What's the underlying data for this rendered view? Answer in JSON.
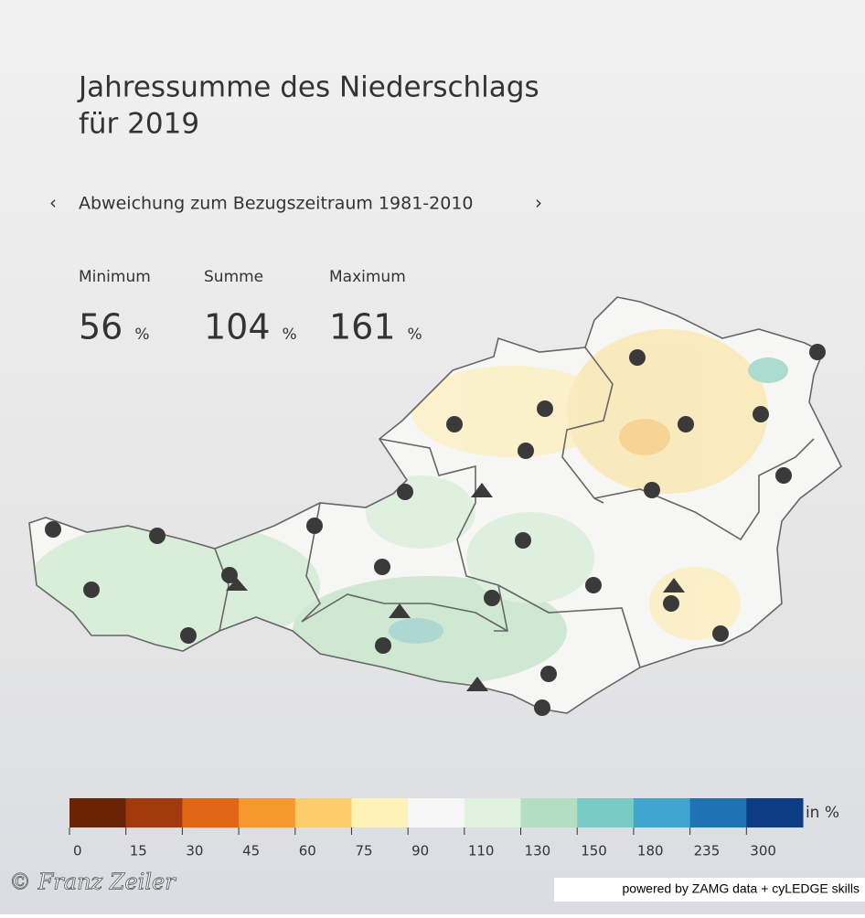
{
  "header": {
    "title_lines": [
      "Jahressumme des Niederschlags",
      "für 2019"
    ]
  },
  "nav": {
    "subtitle": "Abweichung zum Bezugszeitraum 1981-2010",
    "prev": "‹",
    "next": "›"
  },
  "stats": [
    {
      "label": "Minimum",
      "value": 56,
      "unit": "%"
    },
    {
      "label": "Summe",
      "value": 104,
      "unit": "%"
    },
    {
      "label": "Maximum",
      "value": 161,
      "unit": "%"
    }
  ],
  "legend": {
    "bins": [
      0,
      15,
      30,
      45,
      60,
      75,
      90,
      110,
      130,
      150,
      180,
      235,
      300
    ],
    "colors": [
      "#6b2306",
      "#a33a0b",
      "#e06614",
      "#f7982f",
      "#fccd6a",
      "#fef3b7",
      "#f7f7f7",
      "#dff3dc",
      "#b1dfc0",
      "#79cbc3",
      "#41a6cf",
      "#1e73b2",
      "#0c3c82"
    ],
    "unit": "in %"
  },
  "credits": {
    "watermark": "© Franz Zeiler",
    "powered": "powered by ZAMG data + cyLEDGE skills"
  }
}
